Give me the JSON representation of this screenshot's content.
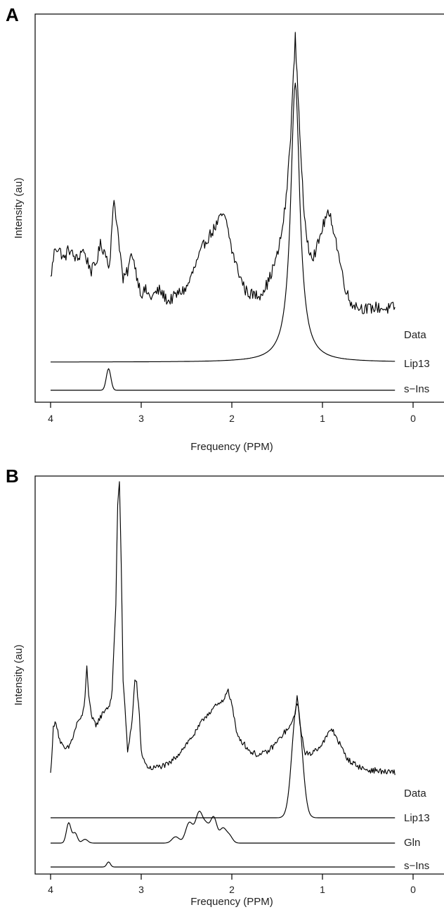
{
  "chart_data": [
    {
      "type": "line",
      "panel_label": "A",
      "xlabel": "Frequency (PPM)",
      "ylabel": "Intensity (au)",
      "x_reversed": true,
      "xlim": [
        4.0,
        0.0
      ],
      "x_ticks": [
        4,
        3,
        2,
        1,
        0
      ],
      "series": [
        {
          "name": "Data",
          "noise": 0.03,
          "x": [
            4.0,
            3.95,
            3.9,
            3.85,
            3.8,
            3.75,
            3.7,
            3.65,
            3.6,
            3.55,
            3.5,
            3.45,
            3.4,
            3.35,
            3.3,
            3.25,
            3.2,
            3.15,
            3.1,
            3.05,
            3.0,
            2.95,
            2.9,
            2.8,
            2.7,
            2.6,
            2.5,
            2.4,
            2.3,
            2.2,
            2.1,
            2.05,
            2.0,
            1.95,
            1.9,
            1.85,
            1.8,
            1.7,
            1.6,
            1.5,
            1.45,
            1.4,
            1.35,
            1.3,
            1.25,
            1.2,
            1.15,
            1.1,
            1.05,
            1.0,
            0.95,
            0.9,
            0.85,
            0.8,
            0.75,
            0.7,
            0.6,
            0.5,
            0.4,
            0.3,
            0.2
          ],
          "y": [
            0.18,
            0.35,
            0.33,
            0.28,
            0.34,
            0.3,
            0.28,
            0.34,
            0.28,
            0.22,
            0.26,
            0.36,
            0.32,
            0.25,
            0.6,
            0.4,
            0.17,
            0.22,
            0.32,
            0.2,
            0.1,
            0.12,
            0.08,
            0.12,
            0.06,
            0.1,
            0.13,
            0.25,
            0.37,
            0.44,
            0.52,
            0.46,
            0.33,
            0.25,
            0.18,
            0.12,
            0.1,
            0.09,
            0.16,
            0.3,
            0.42,
            0.6,
            0.95,
            1.45,
            0.96,
            0.48,
            0.34,
            0.3,
            0.36,
            0.45,
            0.52,
            0.49,
            0.38,
            0.25,
            0.14,
            0.06,
            0.03,
            0.02,
            0.03,
            0.02,
            0.03
          ]
        },
        {
          "name": "Lip13",
          "components": [
            {
              "type": "lorentzian",
              "center": 1.3,
              "width": 0.06,
              "height": 1.47
            }
          ]
        },
        {
          "name": "s−Ins",
          "components": [
            {
              "type": "gaussian",
              "center": 3.36,
              "width": 0.025,
              "height": 0.22
            }
          ]
        }
      ]
    },
    {
      "type": "line",
      "panel_label": "B",
      "xlabel": "Frequency (PPM)",
      "ylabel": "Intensity (au)",
      "x_reversed": true,
      "xlim": [
        4.0,
        0.0
      ],
      "x_ticks": [
        4,
        3,
        2,
        1,
        0
      ],
      "series": [
        {
          "name": "Data",
          "noise": 0.015,
          "x": [
            4.0,
            3.97,
            3.94,
            3.9,
            3.85,
            3.8,
            3.75,
            3.7,
            3.65,
            3.62,
            3.6,
            3.58,
            3.55,
            3.5,
            3.45,
            3.4,
            3.35,
            3.32,
            3.28,
            3.26,
            3.24,
            3.22,
            3.2,
            3.15,
            3.1,
            3.07,
            3.05,
            3.02,
            3.0,
            2.95,
            2.9,
            2.8,
            2.7,
            2.6,
            2.5,
            2.4,
            2.3,
            2.2,
            2.1,
            2.05,
            2.0,
            1.95,
            1.9,
            1.8,
            1.7,
            1.6,
            1.5,
            1.42,
            1.35,
            1.3,
            1.28,
            1.25,
            1.2,
            1.15,
            1.1,
            1.0,
            0.95,
            0.9,
            0.85,
            0.8,
            0.75,
            0.7,
            0.6,
            0.5,
            0.4,
            0.3,
            0.2
          ],
          "y": [
            0.0,
            0.24,
            0.28,
            0.18,
            0.13,
            0.14,
            0.2,
            0.28,
            0.3,
            0.4,
            0.58,
            0.42,
            0.3,
            0.26,
            0.3,
            0.34,
            0.36,
            0.44,
            0.9,
            1.42,
            1.55,
            1.1,
            0.5,
            0.12,
            0.28,
            0.5,
            0.48,
            0.3,
            0.12,
            0.05,
            0.03,
            0.04,
            0.05,
            0.1,
            0.16,
            0.22,
            0.3,
            0.35,
            0.38,
            0.45,
            0.37,
            0.22,
            0.18,
            0.12,
            0.1,
            0.12,
            0.17,
            0.22,
            0.25,
            0.33,
            0.4,
            0.28,
            0.12,
            0.1,
            0.12,
            0.16,
            0.2,
            0.24,
            0.2,
            0.15,
            0.1,
            0.07,
            0.04,
            0.02,
            0.02,
            0.01,
            0.01
          ]
        },
        {
          "name": "Lip13",
          "components": [
            {
              "type": "gaussian",
              "center": 1.28,
              "width": 0.055,
              "height": 0.6
            }
          ]
        },
        {
          "name": "Gln",
          "components": [
            {
              "type": "gaussian",
              "center": 3.8,
              "width": 0.025,
              "height": 0.16
            },
            {
              "type": "gaussian",
              "center": 3.73,
              "width": 0.025,
              "height": 0.08
            },
            {
              "type": "gaussian",
              "center": 3.62,
              "width": 0.03,
              "height": 0.03
            },
            {
              "type": "gaussian",
              "center": 2.62,
              "width": 0.04,
              "height": 0.05
            },
            {
              "type": "gaussian",
              "center": 2.47,
              "width": 0.04,
              "height": 0.16
            },
            {
              "type": "gaussian",
              "center": 2.36,
              "width": 0.04,
              "height": 0.24
            },
            {
              "type": "gaussian",
              "center": 2.28,
              "width": 0.035,
              "height": 0.12
            },
            {
              "type": "gaussian",
              "center": 2.2,
              "width": 0.035,
              "height": 0.2
            },
            {
              "type": "gaussian",
              "center": 2.1,
              "width": 0.035,
              "height": 0.11
            },
            {
              "type": "gaussian",
              "center": 2.03,
              "width": 0.035,
              "height": 0.06
            }
          ]
        },
        {
          "name": "s−Ins",
          "components": [
            {
              "type": "gaussian",
              "center": 3.36,
              "width": 0.02,
              "height": 0.04
            }
          ]
        }
      ]
    }
  ]
}
